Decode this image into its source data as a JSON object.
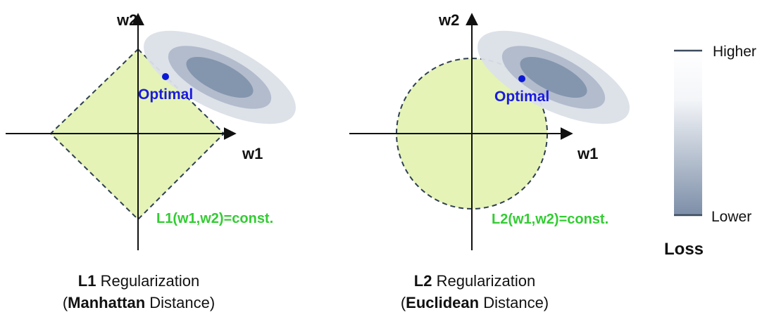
{
  "colors": {
    "constraint_fill": "#e5f3b6",
    "constraint_stroke": "#2f3f52",
    "loss_outer": "#dbe0e8",
    "loss_mid": "#b3bccd",
    "loss_inner": "#8496ae",
    "optimal_point": "#0b19d6",
    "axis": "#111111",
    "const_label": "#33cc33"
  },
  "left_panel": {
    "x_axis_label": "w1",
    "y_axis_label": "w2",
    "optimal_label": "Optimal",
    "constraint_label": "L1(w1,w2)=const.",
    "caption_bold": "L1",
    "caption_rest": " Regularization",
    "caption2_open": "(",
    "caption2_bold": "Manhattan",
    "caption2_rest": " Distance)"
  },
  "right_panel": {
    "x_axis_label": "w1",
    "y_axis_label": "w2",
    "optimal_label": "Optimal",
    "constraint_label": "L2(w1,w2)=const.",
    "caption_bold": "L2",
    "caption_rest": " Regularization",
    "caption2_open": "(",
    "caption2_bold": "Euclidean",
    "caption2_rest": " Distance)"
  },
  "legend": {
    "higher_label": "Higher",
    "lower_label": "Lower",
    "title": "Loss"
  }
}
